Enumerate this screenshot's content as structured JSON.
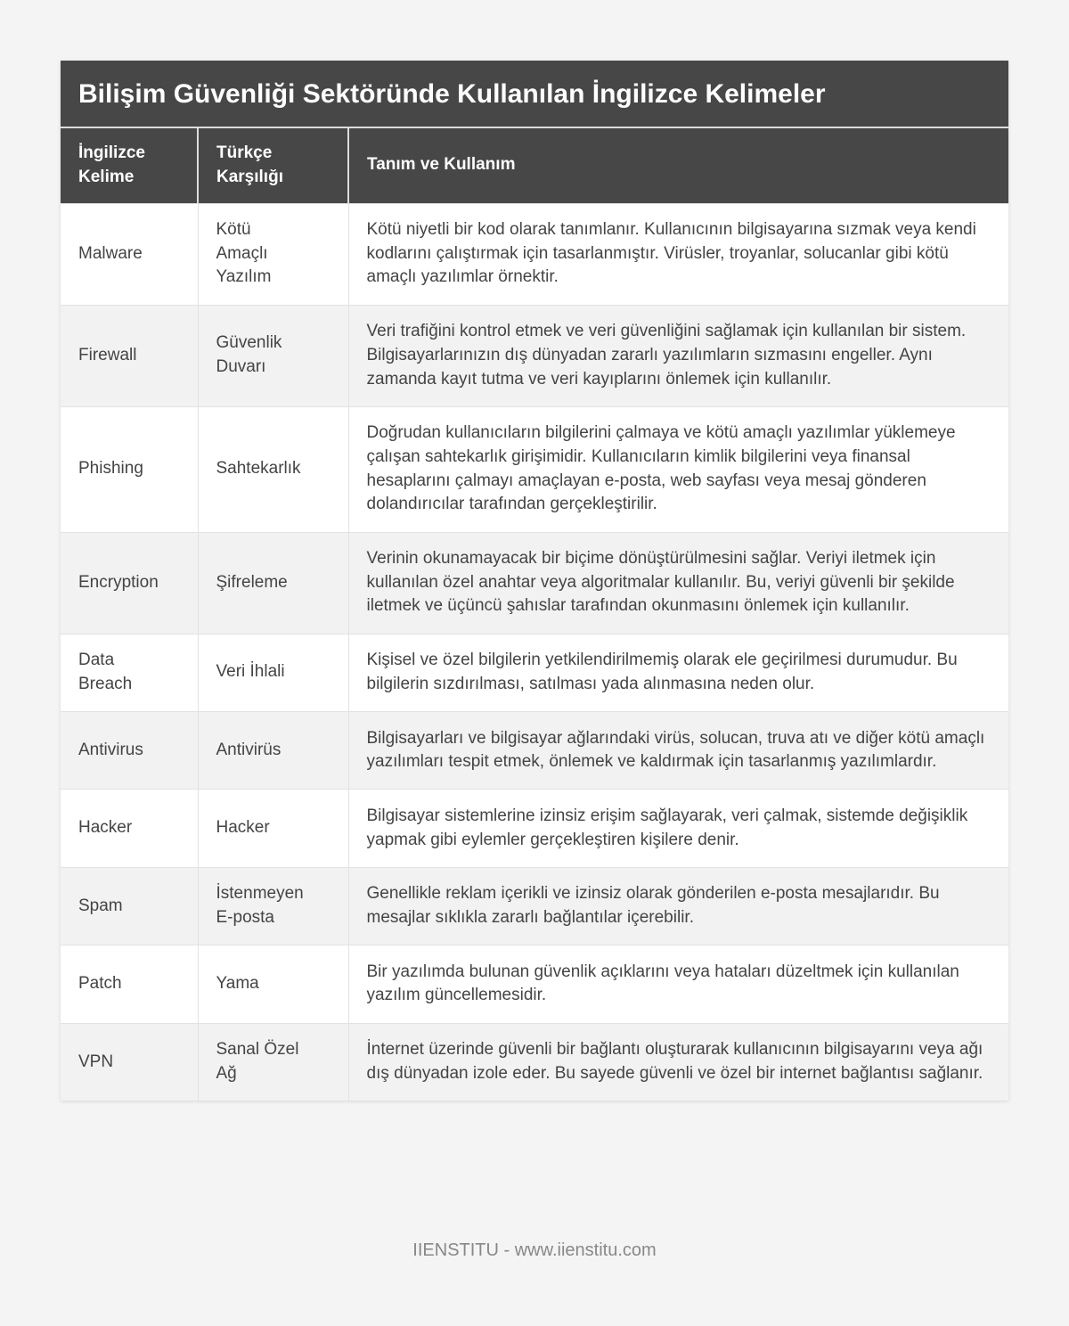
{
  "title": "Bilişim Güvenliği Sektöründe Kullanılan İngilizce Kelimeler",
  "columns": [
    "İngilizce Kelime",
    "Türkçe Karşılığı",
    "Tanım ve Kullanım"
  ],
  "rows": [
    {
      "en": "Malware",
      "tr": "Kötü Amaçlı Yazılım",
      "desc": "Kötü niyetli bir kod olarak tanımlanır. Kullanıcının bilgisayarına sızmak veya kendi kodlarını çalıştırmak için tasarlanmıştır. Virüsler, troyanlar, solucanlar gibi kötü amaçlı yazılımlar örnektir."
    },
    {
      "en": "Firewall",
      "tr": "Güvenlik Duvarı",
      "desc": "Veri trafiğini kontrol etmek ve veri güvenliğini sağlamak için kullanılan bir sistem. Bilgisayarlarınızın dış dünyadan zararlı yazılımların sızmasını engeller. Aynı zamanda kayıt tutma ve veri kayıplarını önlemek için kullanılır."
    },
    {
      "en": "Phishing",
      "tr": "Sahtekarlık",
      "desc": "Doğrudan kullanıcıların bilgilerini çalmaya ve kötü amaçlı yazılımlar yüklemeye çalışan sahtekarlık girişimidir. Kullanıcıların kimlik bilgilerini veya finansal hesaplarını çalmayı amaçlayan e-posta, web sayfası veya mesaj gönderen dolandırıcılar tarafından gerçekleştirilir."
    },
    {
      "en": "Encryption",
      "tr": "Şifreleme",
      "desc": "Verinin okunamayacak bir biçime dönüştürülmesini sağlar. Veriyi iletmek için kullanılan özel anahtar veya algoritmalar kullanılır. Bu, veriyi güvenli bir şekilde iletmek ve üçüncü şahıslar tarafından okunmasını önlemek için kullanılır."
    },
    {
      "en": "Data Breach",
      "tr": "Veri İhlali",
      "desc": "Kişisel ve özel bilgilerin yetkilendirilmemiş olarak ele geçirilmesi durumudur. Bu bilgilerin sızdırılması, satılması yada alınmasına neden olur."
    },
    {
      "en": "Antivirus",
      "tr": "Antivirüs",
      "desc": "Bilgisayarları ve bilgisayar ağlarındaki virüs, solucan, truva atı ve diğer kötü amaçlı yazılımları tespit etmek, önlemek ve kaldırmak için tasarlanmış yazılımlardır."
    },
    {
      "en": "Hacker",
      "tr": "Hacker",
      "desc": "Bilgisayar sistemlerine izinsiz erişim sağlayarak, veri çalmak, sistemde değişiklik yapmak gibi eylemler gerçekleştiren kişilere denir."
    },
    {
      "en": "Spam",
      "tr": "İstenmeyen E-posta",
      "desc": "Genellikle reklam içerikli ve izinsiz olarak gönderilen e-posta mesajlarıdır. Bu mesajlar sıklıkla zararlı bağlantılar içerebilir."
    },
    {
      "en": "Patch",
      "tr": "Yama",
      "desc": "Bir yazılımda bulunan güvenlik açıklarını veya hataları düzeltmek için kullanılan yazılım güncellemesidir."
    },
    {
      "en": "VPN",
      "tr": "Sanal Özel Ağ",
      "desc": "İnternet üzerinde güvenli bir bağlantı oluşturarak kullanıcının bilgisayarını veya ağı dış dünyadan izole eder. Bu sayede güvenli ve özel bir internet bağlantısı sağlanır."
    }
  ],
  "footer": "IIENSTITU - www.iienstitu.com"
}
